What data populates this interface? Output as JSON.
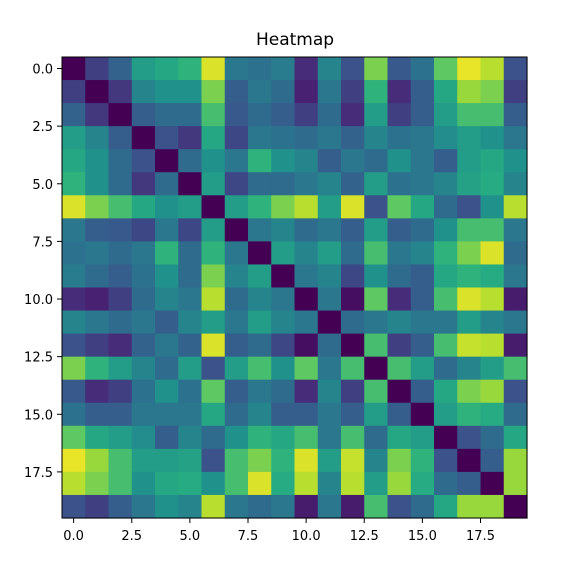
{
  "chart_data": {
    "type": "heatmap",
    "title": "Heatmap",
    "xlabel": "",
    "ylabel": "",
    "colormap": "viridis",
    "color_range": [
      0,
      1
    ],
    "xlim": [
      -0.5,
      19.5
    ],
    "ylim": [
      19.5,
      -0.5
    ],
    "x_ticks": [
      0.0,
      2.5,
      5.0,
      7.5,
      10.0,
      12.5,
      15.0,
      17.5
    ],
    "x_tick_labels": [
      "0.0",
      "2.5",
      "5.0",
      "7.5",
      "10.0",
      "12.5",
      "15.0",
      "17.5"
    ],
    "y_ticks": [
      0.0,
      2.5,
      5.0,
      7.5,
      10.0,
      12.5,
      15.0,
      17.5
    ],
    "y_tick_labels": [
      "0.0",
      "2.5",
      "5.0",
      "7.5",
      "10.0",
      "12.5",
      "15.0",
      "17.5"
    ],
    "grid": false,
    "values": [
      [
        0.0,
        0.2,
        0.32,
        0.55,
        0.6,
        0.65,
        0.95,
        0.4,
        0.38,
        0.42,
        0.15,
        0.45,
        0.25,
        0.8,
        0.28,
        0.38,
        0.75,
        0.97,
        0.9,
        0.25
      ],
      [
        0.2,
        0.0,
        0.18,
        0.45,
        0.5,
        0.5,
        0.8,
        0.3,
        0.4,
        0.35,
        0.12,
        0.4,
        0.2,
        0.65,
        0.15,
        0.3,
        0.6,
        0.85,
        0.8,
        0.2
      ],
      [
        0.32,
        0.18,
        0.0,
        0.3,
        0.35,
        0.35,
        0.7,
        0.28,
        0.35,
        0.3,
        0.2,
        0.35,
        0.15,
        0.55,
        0.2,
        0.3,
        0.55,
        0.7,
        0.7,
        0.3
      ],
      [
        0.55,
        0.45,
        0.3,
        0.0,
        0.25,
        0.18,
        0.6,
        0.22,
        0.4,
        0.38,
        0.35,
        0.4,
        0.32,
        0.45,
        0.38,
        0.4,
        0.48,
        0.55,
        0.5,
        0.4
      ],
      [
        0.6,
        0.5,
        0.35,
        0.25,
        0.0,
        0.35,
        0.5,
        0.4,
        0.65,
        0.5,
        0.45,
        0.3,
        0.4,
        0.35,
        0.5,
        0.4,
        0.3,
        0.55,
        0.6,
        0.5
      ],
      [
        0.65,
        0.5,
        0.35,
        0.18,
        0.35,
        0.0,
        0.55,
        0.22,
        0.35,
        0.35,
        0.4,
        0.45,
        0.32,
        0.55,
        0.38,
        0.4,
        0.45,
        0.58,
        0.62,
        0.45
      ],
      [
        0.95,
        0.8,
        0.7,
        0.6,
        0.5,
        0.55,
        0.0,
        0.55,
        0.65,
        0.8,
        0.9,
        0.55,
        0.95,
        0.25,
        0.75,
        0.6,
        0.35,
        0.25,
        0.5,
        0.9
      ],
      [
        0.4,
        0.3,
        0.28,
        0.22,
        0.4,
        0.22,
        0.55,
        0.0,
        0.4,
        0.45,
        0.35,
        0.4,
        0.3,
        0.55,
        0.3,
        0.35,
        0.5,
        0.7,
        0.7,
        0.4
      ],
      [
        0.38,
        0.4,
        0.35,
        0.4,
        0.65,
        0.35,
        0.65,
        0.4,
        0.0,
        0.55,
        0.45,
        0.55,
        0.35,
        0.7,
        0.4,
        0.45,
        0.65,
        0.8,
        0.95,
        0.35
      ],
      [
        0.42,
        0.35,
        0.3,
        0.38,
        0.5,
        0.35,
        0.8,
        0.45,
        0.55,
        0.0,
        0.4,
        0.45,
        0.22,
        0.5,
        0.35,
        0.3,
        0.6,
        0.65,
        0.62,
        0.4
      ],
      [
        0.15,
        0.12,
        0.2,
        0.35,
        0.45,
        0.4,
        0.9,
        0.35,
        0.45,
        0.4,
        0.0,
        0.4,
        0.05,
        0.75,
        0.15,
        0.3,
        0.7,
        0.95,
        0.9,
        0.1
      ],
      [
        0.45,
        0.4,
        0.35,
        0.4,
        0.3,
        0.45,
        0.55,
        0.4,
        0.55,
        0.45,
        0.4,
        0.0,
        0.35,
        0.4,
        0.45,
        0.4,
        0.4,
        0.55,
        0.45,
        0.4
      ],
      [
        0.25,
        0.2,
        0.15,
        0.32,
        0.4,
        0.32,
        0.95,
        0.3,
        0.35,
        0.22,
        0.05,
        0.35,
        0.0,
        0.7,
        0.2,
        0.3,
        0.7,
        0.92,
        0.9,
        0.1
      ],
      [
        0.8,
        0.65,
        0.55,
        0.45,
        0.35,
        0.55,
        0.25,
        0.55,
        0.7,
        0.5,
        0.75,
        0.4,
        0.7,
        0.0,
        0.7,
        0.55,
        0.35,
        0.45,
        0.55,
        0.7
      ],
      [
        0.28,
        0.15,
        0.2,
        0.38,
        0.5,
        0.38,
        0.75,
        0.3,
        0.4,
        0.35,
        0.15,
        0.45,
        0.2,
        0.7,
        0.0,
        0.3,
        0.6,
        0.8,
        0.85,
        0.25
      ],
      [
        0.38,
        0.3,
        0.3,
        0.4,
        0.4,
        0.4,
        0.6,
        0.35,
        0.45,
        0.3,
        0.3,
        0.4,
        0.3,
        0.55,
        0.3,
        0.0,
        0.55,
        0.65,
        0.62,
        0.35
      ],
      [
        0.75,
        0.6,
        0.55,
        0.48,
        0.3,
        0.45,
        0.35,
        0.5,
        0.65,
        0.6,
        0.7,
        0.4,
        0.7,
        0.35,
        0.6,
        0.55,
        0.0,
        0.25,
        0.35,
        0.6
      ],
      [
        0.97,
        0.85,
        0.7,
        0.55,
        0.55,
        0.58,
        0.25,
        0.7,
        0.8,
        0.65,
        0.95,
        0.55,
        0.92,
        0.45,
        0.8,
        0.65,
        0.25,
        0.0,
        0.3,
        0.85
      ],
      [
        0.9,
        0.8,
        0.7,
        0.5,
        0.6,
        0.62,
        0.5,
        0.7,
        0.95,
        0.62,
        0.9,
        0.45,
        0.9,
        0.55,
        0.85,
        0.62,
        0.35,
        0.3,
        0.0,
        0.85
      ],
      [
        0.25,
        0.2,
        0.3,
        0.4,
        0.5,
        0.45,
        0.9,
        0.4,
        0.35,
        0.4,
        0.1,
        0.4,
        0.1,
        0.7,
        0.25,
        0.35,
        0.6,
        0.85,
        0.85,
        0.0
      ]
    ]
  }
}
